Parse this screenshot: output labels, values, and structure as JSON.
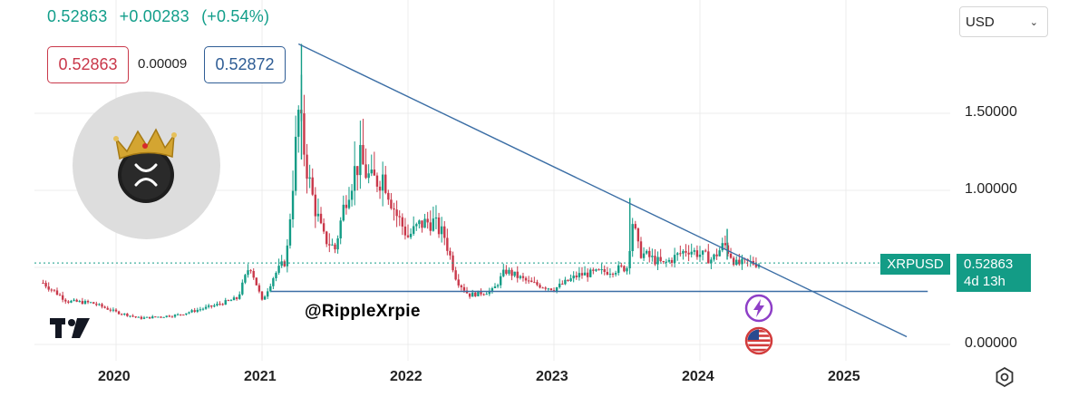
{
  "header": {
    "last_price": "0.52863",
    "change": "+0.00283",
    "change_pct": "(+0.54%)",
    "currency": "USD",
    "bid": "0.52863",
    "spread": "0.00009",
    "ask": "0.52872"
  },
  "colors": {
    "up": "#139c86",
    "down": "#c9384a",
    "trendline": "#3b6ea5",
    "grid": "#ececec",
    "price_line": "#139c86"
  },
  "icons": [
    "tradingview-logo-icon",
    "xrp-crown-logo-icon",
    "lightning-icon",
    "us-flag-icon",
    "settings-icon",
    "chevron-down-icon"
  ],
  "watermark": "@RippleXrpie",
  "price_tag": {
    "symbol": "XRPUSD",
    "price": "0.52863",
    "countdown": "4d 13h"
  },
  "chart_data": {
    "type": "candlestick",
    "symbol": "XRPUSD",
    "x_axis": {
      "tick_labels": [
        "2020",
        "2021",
        "2022",
        "2023",
        "2024",
        "2025"
      ],
      "range": [
        "2019-07",
        "2025-06"
      ]
    },
    "y_axis": {
      "tick_labels": [
        "0.00000",
        "1.00000",
        "1.50000"
      ],
      "ticks": [
        0,
        1.0,
        1.5
      ],
      "range": [
        -0.1,
        2.0
      ],
      "position": "right"
    },
    "grid": true,
    "last_price": 0.52863,
    "series": [
      {
        "kind": "close_path_approx",
        "points": [
          [
            "2019-07",
            0.4
          ],
          [
            "2019-09",
            0.28
          ],
          [
            "2019-11",
            0.27
          ],
          [
            "2020-01",
            0.21
          ],
          [
            "2020-03",
            0.17
          ],
          [
            "2020-06",
            0.19
          ],
          [
            "2020-09",
            0.25
          ],
          [
            "2020-11",
            0.3
          ],
          [
            "2020-12",
            0.52
          ],
          [
            "2021-01",
            0.28
          ],
          [
            "2021-02",
            0.45
          ],
          [
            "2021-03",
            0.55
          ],
          [
            "2021-04",
            1.5
          ],
          [
            "2021-05",
            1.0
          ],
          [
            "2021-06",
            0.7
          ],
          [
            "2021-07",
            0.62
          ],
          [
            "2021-08",
            1.0
          ],
          [
            "2021-09",
            1.2
          ],
          [
            "2021-10",
            1.05
          ],
          [
            "2021-11",
            1.1
          ],
          [
            "2021-12",
            0.85
          ],
          [
            "2022-01",
            0.7
          ],
          [
            "2022-02",
            0.78
          ],
          [
            "2022-03",
            0.8
          ],
          [
            "2022-04",
            0.7
          ],
          [
            "2022-05",
            0.42
          ],
          [
            "2022-06",
            0.32
          ],
          [
            "2022-08",
            0.35
          ],
          [
            "2022-09",
            0.48
          ],
          [
            "2022-11",
            0.4
          ],
          [
            "2023-01",
            0.36
          ],
          [
            "2023-03",
            0.45
          ],
          [
            "2023-05",
            0.47
          ],
          [
            "2023-07",
            0.5
          ],
          [
            "2023-07-15",
            0.8
          ],
          [
            "2023-08",
            0.6
          ],
          [
            "2023-10",
            0.52
          ],
          [
            "2023-12",
            0.62
          ],
          [
            "2024-02",
            0.55
          ],
          [
            "2024-03",
            0.65
          ],
          [
            "2024-04",
            0.52
          ],
          [
            "2024-05",
            0.53
          ],
          [
            "2024-06",
            0.52863
          ]
        ]
      },
      {
        "kind": "descending_trendline",
        "from": [
          "2021-04",
          1.95
        ],
        "to": [
          "2025-06",
          0.05
        ]
      },
      {
        "kind": "support_line",
        "from": [
          "2021-01",
          0.35
        ],
        "to": [
          "2025-04",
          0.35
        ]
      }
    ]
  }
}
